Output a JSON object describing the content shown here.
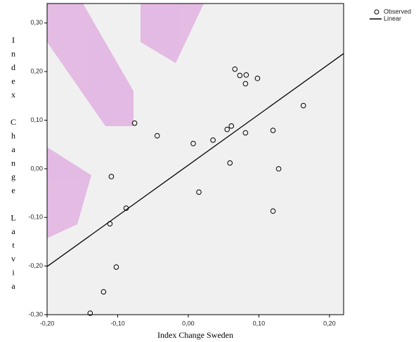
{
  "chart_data": {
    "type": "scatter",
    "x_label": "Index Change Sweden",
    "y_label": "Index Change Latvia",
    "xlim": [
      -0.2,
      0.22
    ],
    "ylim": [
      -0.3,
      0.34
    ],
    "xticks": [
      {
        "value": -0.2,
        "label": "-0,20"
      },
      {
        "value": -0.1,
        "label": "-0,10"
      },
      {
        "value": 0,
        "label": "0,00"
      },
      {
        "value": 0.1,
        "label": "0,10"
      },
      {
        "value": 0.2,
        "label": "0,20"
      }
    ],
    "yticks": [
      {
        "value": -0.3,
        "label": "-0,30"
      },
      {
        "value": -0.2,
        "label": "-0,20"
      },
      {
        "value": -0.1,
        "label": "-0,10"
      },
      {
        "value": 0,
        "label": "0,00"
      },
      {
        "value": 0.1,
        "label": "0,10"
      },
      {
        "value": 0.2,
        "label": "0,20"
      },
      {
        "value": 0.3,
        "label": "0,30"
      }
    ],
    "legend": "top-right",
    "series": [
      {
        "name": "Observed",
        "color": "#000000",
        "marker": "open-circle",
        "x": [
          0.066,
          0.073,
          0.082,
          0.081,
          0.098,
          0.163,
          -0.076,
          -0.044,
          0.007,
          0.035,
          0.055,
          0.061,
          0.081,
          0.12,
          0.059,
          0.128,
          -0.109,
          0.015,
          -0.088,
          0.12,
          -0.111,
          -0.102,
          -0.12,
          -0.139
        ],
        "values": [
          0.205,
          0.192,
          0.193,
          0.175,
          0.186,
          0.13,
          0.094,
          0.068,
          0.052,
          0.059,
          0.081,
          0.088,
          0.074,
          0.079,
          0.012,
          0.0,
          -0.016,
          -0.048,
          -0.081,
          -0.087,
          -0.113,
          -0.202,
          -0.253,
          -0.297
        ]
      },
      {
        "name": "Linear",
        "color": "#000000",
        "marker": "line",
        "x": [
          -0.2,
          0.22
        ],
        "values": [
          -0.201,
          0.237
        ]
      }
    ]
  }
}
